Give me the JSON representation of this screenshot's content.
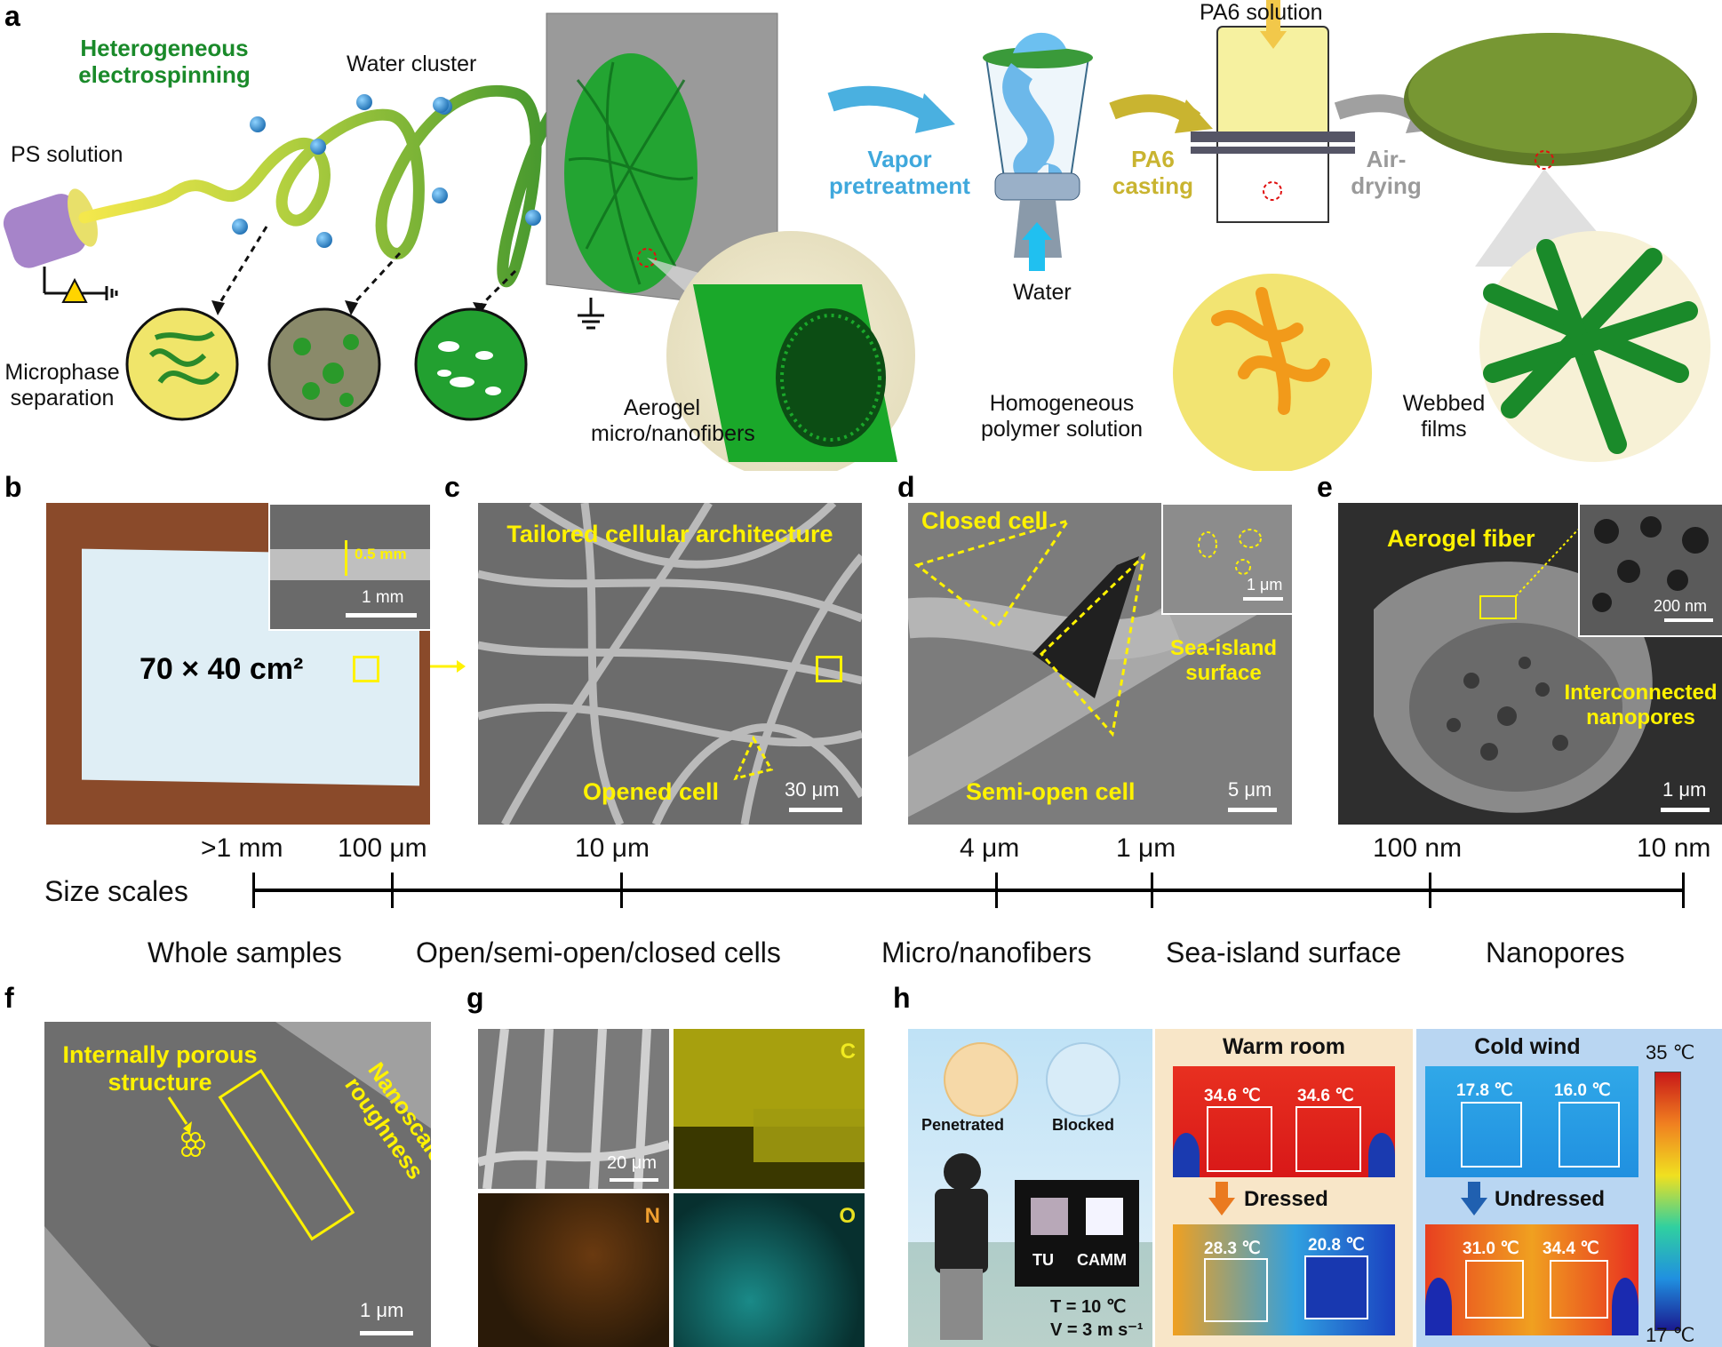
{
  "panels": {
    "a": "a",
    "b": "b",
    "c": "c",
    "d": "d",
    "e": "e",
    "f": "f",
    "g": "g",
    "h": "h"
  },
  "a": {
    "hetero": "Heterogeneous electrospinning",
    "water_cluster": "Water cluster",
    "ps_solution": "PS solution",
    "microphase": "Microphase separation",
    "aerogel": "Aerogel micro/nanofibers",
    "vapor": "Vapor pretreatment",
    "water": "Water",
    "pa6_solution": "PA6 solution",
    "pa6_casting": "PA6 casting",
    "air_drying": "Air-drying",
    "homogeneous": "Homogeneous polymer solution",
    "webbed": "Webbed films"
  },
  "b": {
    "inset_thickness": "0.5 mm",
    "inset_scale": "1 mm",
    "size": "70 × 40 cm²"
  },
  "c": {
    "title": "Tailored cellular architecture",
    "opened": "Opened cell",
    "scale": "30 μm"
  },
  "d": {
    "closed": "Closed cell",
    "semi": "Semi-open cell",
    "sea_island": "Sea-island surface",
    "inset_scale": "1 μm",
    "scale": "5 μm"
  },
  "e": {
    "aerogel_fiber": "Aerogel fiber",
    "interconnected": "Interconnected nanopores",
    "inset_scale": "200 nm",
    "scale": "1 μm"
  },
  "scales": {
    "label": "Size scales",
    "top": [
      ">1 mm",
      "100 μm",
      "10 μm",
      "4 μm",
      "1 μm",
      "100 nm",
      "10 nm"
    ],
    "bottom": [
      "Whole samples",
      "Open/semi-open/closed cells",
      "Micro/nanofibers",
      "Sea-island surface",
      "Nanopores"
    ]
  },
  "f": {
    "porous": "Internally porous structure",
    "roughness": "Nanoscale roughness",
    "scale": "1 μm"
  },
  "g": {
    "scale": "20 μm",
    "C": "C",
    "N": "N",
    "O": "O"
  },
  "h": {
    "penetrated": "Penetrated",
    "blocked": "Blocked",
    "tu": "TU",
    "camm": "CAMM",
    "temp": "T = 10 ℃",
    "wind": "V = 3 m s⁻¹",
    "warm_room": "Warm room",
    "dressed": "Dressed",
    "cold_wind": "Cold wind",
    "undressed": "Undressed",
    "warm_top": [
      "34.6 ℃",
      "34.6 ℃"
    ],
    "warm_bottom": [
      "28.3 ℃",
      "20.8 ℃"
    ],
    "cold_top": [
      "17.8 ℃",
      "16.0 ℃"
    ],
    "cold_bottom": [
      "31.0 ℃",
      "34.4 ℃"
    ],
    "cbar_max": "35 ℃",
    "cbar_min": "17 ℃"
  },
  "colors": {
    "green": "#1a9a2a",
    "blue_text": "#3fa8dc",
    "gold_text": "#c9b430",
    "grey_text": "#9a9a9a",
    "label_yellow": "#fff200"
  }
}
